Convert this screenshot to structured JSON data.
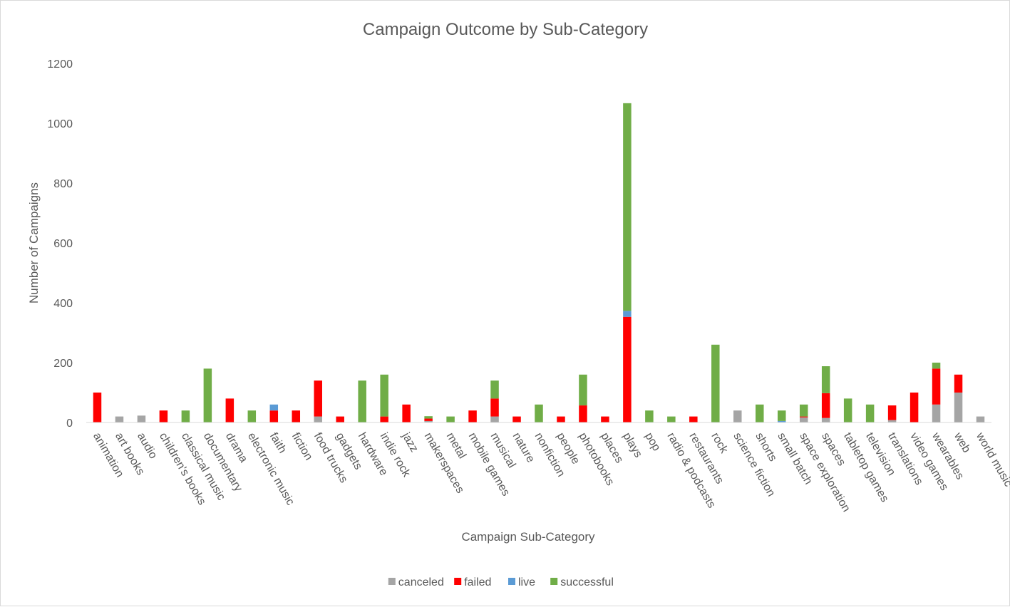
{
  "chart_data": {
    "type": "bar",
    "stacked": true,
    "title": "Campaign Outcome by Sub-Category",
    "xlabel": "Campaign Sub-Category",
    "ylabel": "Number of Campaigns",
    "ylim": [
      0,
      1200
    ],
    "yticks": [
      0,
      200,
      400,
      600,
      800,
      1000,
      1200
    ],
    "grid": false,
    "legend_position": "bottom",
    "categories": [
      "animation",
      "art books",
      "audio",
      "children's books",
      "classical music",
      "documentary",
      "drama",
      "electronic music",
      "faith",
      "fiction",
      "food trucks",
      "gadgets",
      "hardware",
      "indie rock",
      "jazz",
      "makerspaces",
      "metal",
      "mobile games",
      "musical",
      "nature",
      "nonfiction",
      "people",
      "photobooks",
      "places",
      "plays",
      "pop",
      "radio & podcasts",
      "restaurants",
      "rock",
      "science fiction",
      "shorts",
      "small batch",
      "space exploration",
      "spaces",
      "tabletop games",
      "television",
      "translations",
      "video games",
      "wearables",
      "web",
      "world music"
    ],
    "series": [
      {
        "name": "canceled",
        "color": "#a5a5a5",
        "values": [
          0,
          20,
          23,
          0,
          0,
          0,
          0,
          0,
          0,
          0,
          20,
          0,
          0,
          0,
          0,
          5,
          0,
          0,
          20,
          0,
          0,
          0,
          0,
          0,
          0,
          0,
          0,
          0,
          0,
          40,
          0,
          0,
          17,
          15,
          0,
          0,
          8,
          0,
          60,
          100,
          20
        ]
      },
      {
        "name": "failed",
        "color": "#ff0000",
        "values": [
          100,
          0,
          0,
          40,
          0,
          0,
          80,
          0,
          40,
          40,
          120,
          20,
          0,
          20,
          60,
          8,
          0,
          40,
          60,
          20,
          0,
          20,
          57,
          20,
          353,
          0,
          0,
          20,
          0,
          0,
          0,
          0,
          3,
          83,
          0,
          0,
          49,
          100,
          120,
          60,
          0
        ]
      },
      {
        "name": "live",
        "color": "#5b9bd5",
        "values": [
          0,
          0,
          0,
          0,
          0,
          0,
          0,
          0,
          20,
          0,
          0,
          0,
          0,
          0,
          0,
          0,
          0,
          0,
          0,
          0,
          0,
          0,
          0,
          0,
          20,
          0,
          0,
          0,
          0,
          0,
          0,
          5,
          0,
          0,
          0,
          0,
          0,
          0,
          0,
          0,
          0
        ]
      },
      {
        "name": "successful",
        "color": "#70ad47",
        "values": [
          0,
          0,
          0,
          0,
          40,
          180,
          0,
          40,
          0,
          0,
          0,
          0,
          140,
          140,
          0,
          8,
          20,
          0,
          60,
          0,
          60,
          0,
          103,
          0,
          694,
          40,
          20,
          0,
          260,
          0,
          60,
          35,
          40,
          90,
          80,
          60,
          0,
          0,
          20,
          0,
          0
        ]
      }
    ]
  }
}
